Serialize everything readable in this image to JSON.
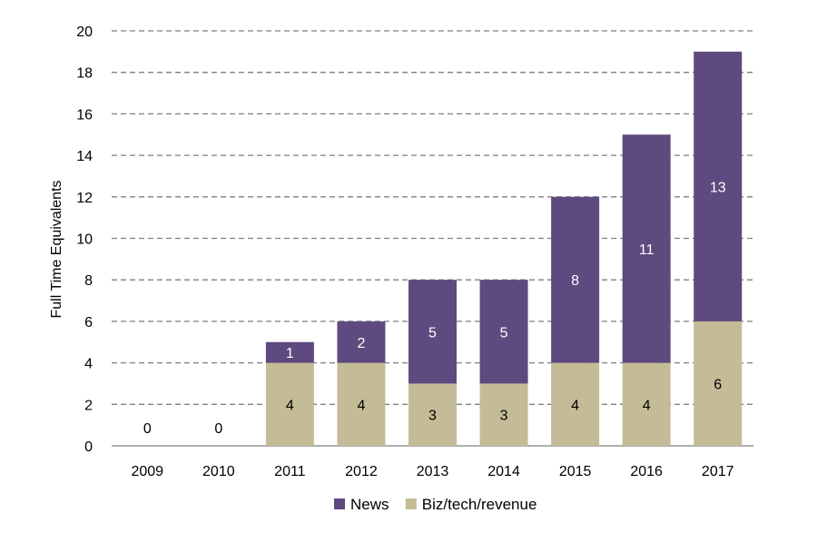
{
  "chart_data": {
    "type": "bar",
    "stacked": true,
    "title": "",
    "xlabel": "",
    "ylabel": "Full Time Equivalents",
    "categories": [
      "2009",
      "2010",
      "2011",
      "2012",
      "2013",
      "2014",
      "2015",
      "2016",
      "2017"
    ],
    "series": [
      {
        "name": "Biz/tech/revenue",
        "values": [
          0,
          0,
          4,
          4,
          3,
          3,
          4,
          4,
          6
        ],
        "color": "#c4bc96",
        "label_color": "#000000"
      },
      {
        "name": "News",
        "values": [
          0,
          0,
          1,
          2,
          5,
          5,
          8,
          11,
          13
        ],
        "color": "#5e4a7e",
        "label_color": "#ffffff"
      }
    ],
    "ylim": [
      0,
      20
    ],
    "yticks": [
      0,
      2,
      4,
      6,
      8,
      10,
      12,
      14,
      16,
      18,
      20
    ],
    "grid": true,
    "grid_style": "dashed",
    "legend_position": "bottom",
    "legend_order": [
      "News",
      "Biz/tech/revenue"
    ]
  }
}
